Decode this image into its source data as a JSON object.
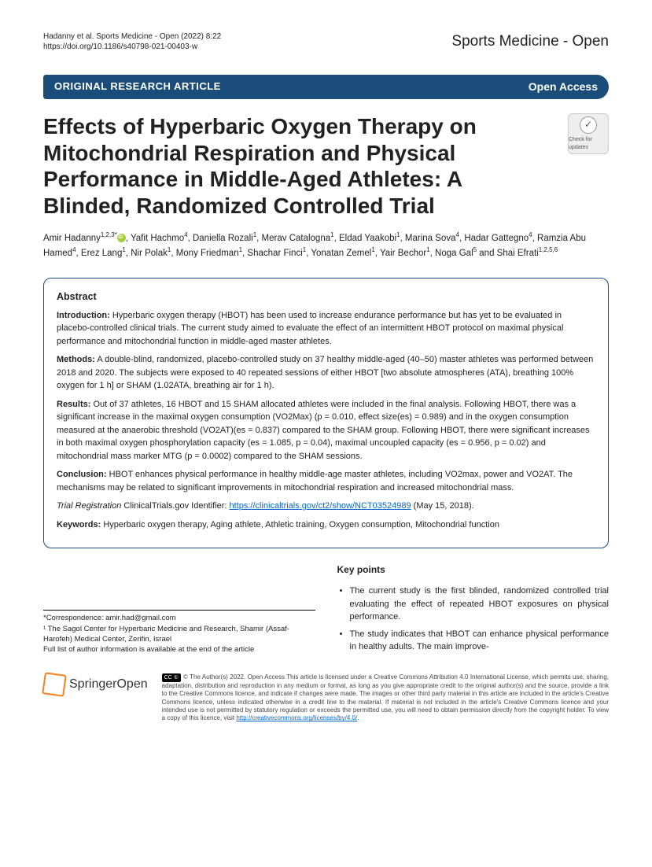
{
  "header": {
    "citation_line1": "Hadanny et al. Sports Medicine - Open     (2022) 8:22",
    "citation_line2": "https://doi.org/10.1186/s40798-021-00403-w",
    "journal": "Sports Medicine - Open"
  },
  "banner": {
    "category": "ORIGINAL RESEARCH ARTICLE",
    "access": "Open Access"
  },
  "title": "Effects of Hyperbaric Oxygen Therapy on Mitochondrial Respiration and Physical Performance in Middle-Aged Athletes: A Blinded, Randomized Controlled Trial",
  "check_updates": "Check for updates",
  "authors_html": "Amir Hadanny<sup>1,2,3*</sup>, Yafit Hachmo<sup>4</sup>, Daniella Rozali<sup>1</sup>, Merav Catalogna<sup>1</sup>, Eldad Yaakobi<sup>1</sup>, Marina Sova<sup>4</sup>, Hadar Gattegno<sup>4</sup>, Ramzia Abu Hamed<sup>4</sup>, Erez Lang<sup>1</sup>, Nir Polak<sup>1</sup>, Mony Friedman<sup>1</sup>, Shachar Finci<sup>1</sup>, Yonatan Zemel<sup>1</sup>, Yair Bechor<sup>1</sup>, Noga Gal<sup>5</sup> and Shai Efrati<sup>1,2,5,6</sup>",
  "abstract": {
    "heading": "Abstract",
    "introduction_label": "Introduction:",
    "introduction": "Hyperbaric oxygen therapy (HBOT) has been used to increase endurance performance but has yet to be evaluated in placebo-controlled clinical trials. The current study aimed to evaluate the effect of an intermittent HBOT protocol on maximal physical performance and mitochondrial function in middle-aged master athletes.",
    "methods_label": "Methods:",
    "methods": "A double-blind, randomized, placebo-controlled study on 37 healthy middle-aged (40–50) master athletes was performed between 2018 and 2020. The subjects were exposed to 40 repeated sessions of either HBOT [two absolute atmospheres (ATA), breathing 100% oxygen for 1 h] or SHAM (1.02ATA, breathing air for 1 h).",
    "results_label": "Results:",
    "results": "Out of 37 athletes, 16 HBOT and 15 SHAM allocated athletes were included in the final analysis. Following HBOT, there was a significant increase in the maximal oxygen consumption (VO2Max) (p = 0.010, effect size(es) = 0.989) and in the oxygen consumption measured at the anaerobic threshold (VO2AT)(es = 0.837) compared to the SHAM group. Following HBOT, there were significant increases in both maximal oxygen phosphorylation capacity (es = 1.085, p = 0.04), maximal uncoupled capacity (es = 0.956, p = 0.02) and mitochondrial mass marker MTG (p = 0.0002) compared to the SHAM sessions.",
    "conclusion_label": "Conclusion:",
    "conclusion": "HBOT enhances physical performance in healthy middle-age master athletes, including VO2max, power and VO2AT. The mechanisms may be related to significant improvements in mitochondrial respiration and increased mitochondrial mass.",
    "trial_label": "Trial Registration",
    "trial_text": "ClinicalTrials.gov Identifier:",
    "trial_link": "https://clinicaltrials.gov/ct2/show/NCT03524989",
    "trial_date": "(May 15, 2018).",
    "keywords_label": "Keywords:",
    "keywords": "Hyperbaric oxygen therapy, Aging athlete, Athletic training, Oxygen consumption, Mitochondrial function"
  },
  "keypoints": {
    "heading": "Key points",
    "items": [
      "The current study is the first blinded, randomized controlled trial evaluating the effect of repeated HBOT exposures on physical performance.",
      "The study indicates that HBOT can enhance physical performance in healthy adults. The main improve-"
    ]
  },
  "correspondence": {
    "line1": "*Correspondence: amir.had@gmail.com",
    "line2": "¹ The Sagol Center for Hyperbaric Medicine and Research, Shamir (Assaf-Harofeh) Medical Center, Zerifin, Israel",
    "line3": "Full list of author information is available at the end of the article"
  },
  "footer": {
    "logo_text": "SpringerOpen",
    "license": "© The Author(s) 2022. Open Access This article is licensed under a Creative Commons Attribution 4.0 International License, which permits use, sharing, adaptation, distribution and reproduction in any medium or format, as long as you give appropriate credit to the original author(s) and the source, provide a link to the Creative Commons licence, and indicate if changes were made. The images or other third party material in this article are included in the article's Creative Commons licence, unless indicated otherwise in a credit line to the material. If material is not included in the article's Creative Commons licence and your intended use is not permitted by statutory regulation or exceeds the permitted use, you will need to obtain permission directly from the copyright holder. To view a copy of this licence, visit",
    "license_link": "http://creativecommons.org/licenses/by/4.0/"
  },
  "colors": {
    "banner_bg": "#1a4d7a",
    "link": "#0066cc",
    "springer_orange": "#f58220"
  }
}
